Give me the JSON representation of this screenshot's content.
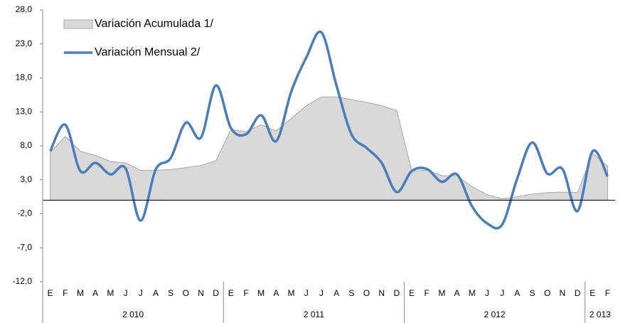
{
  "chart_data": {
    "type": "line",
    "categories": [
      "E",
      "F",
      "M",
      "A",
      "M",
      "J",
      "J",
      "A",
      "S",
      "O",
      "N",
      "D",
      "E",
      "F",
      "M",
      "A",
      "M",
      "J",
      "J",
      "A",
      "S",
      "O",
      "N",
      "D",
      "E",
      "F",
      "M",
      "A",
      "M",
      "J",
      "J",
      "A",
      "S",
      "O",
      "N",
      "D",
      "E",
      "F"
    ],
    "years": [
      "2 010",
      "2 011",
      "2 012",
      "2 013"
    ],
    "series": [
      {
        "name": "Variación Acumulada 1/",
        "kind": "area",
        "color": "#d9d9d9",
        "values": [
          7.0,
          9.4,
          7.2,
          6.6,
          5.7,
          5.5,
          4.4,
          4.4,
          4.5,
          4.8,
          5.1,
          5.8,
          10.4,
          10.1,
          11.1,
          10.2,
          12.0,
          13.9,
          15.2,
          15.2,
          14.8,
          14.4,
          13.9,
          13.2,
          4.3,
          4.4,
          3.6,
          3.6,
          2.0,
          0.8,
          0.2,
          0.5,
          0.9,
          1.1,
          1.2,
          1.1,
          6.9,
          5.0
        ]
      },
      {
        "name": "Variación Mensual 2/",
        "kind": "line",
        "color": "#4a7ebb",
        "values": [
          7.2,
          11.1,
          4.3,
          5.5,
          3.8,
          4.7,
          -3.0,
          4.5,
          6.2,
          11.4,
          9.2,
          16.9,
          10.6,
          9.7,
          12.5,
          8.7,
          16.0,
          21.0,
          24.7,
          16.9,
          9.7,
          7.7,
          5.5,
          1.2,
          4.3,
          4.6,
          2.7,
          3.8,
          -0.9,
          -3.4,
          -3.6,
          3.2,
          8.5,
          3.9,
          4.6,
          -1.6,
          7.2,
          3.5
        ]
      }
    ],
    "ylim": [
      -12,
      28
    ],
    "yticks": [
      {
        "value": -12,
        "label": "-12,0"
      },
      {
        "value": -7,
        "label": "-7,0"
      },
      {
        "value": -2,
        "label": "-2,0"
      },
      {
        "value": 3,
        "label": "3,0"
      },
      {
        "value": 8,
        "label": "8,0"
      },
      {
        "value": 13,
        "label": "13,0"
      },
      {
        "value": 18,
        "label": "18,0"
      },
      {
        "value": 23,
        "label": "23,0"
      },
      {
        "value": 28,
        "label": "28,0"
      }
    ],
    "grid": false
  }
}
